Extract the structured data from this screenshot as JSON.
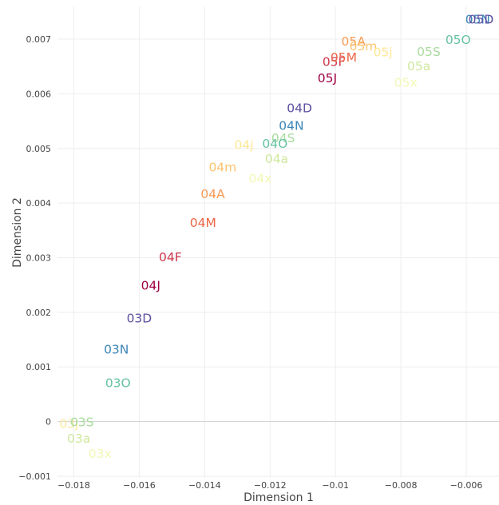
{
  "chart_data": {
    "type": "scatter",
    "mode": "text",
    "xlabel": "Dimension 1",
    "ylabel": "Dimension 2",
    "xlim": [
      -0.0185,
      -0.005
    ],
    "ylim": [
      -0.00103,
      0.0076
    ],
    "x_ticks": [
      {
        "value": -0.018,
        "label": "−0.018"
      },
      {
        "value": -0.016,
        "label": "−0.016"
      },
      {
        "value": -0.014,
        "label": "−0.014"
      },
      {
        "value": -0.012,
        "label": "−0.012"
      },
      {
        "value": -0.01,
        "label": "−0.01"
      },
      {
        "value": -0.008,
        "label": "−0.008"
      },
      {
        "value": -0.006,
        "label": "−0.006"
      }
    ],
    "y_ticks": [
      {
        "value": -0.001,
        "label": "−0.001"
      },
      {
        "value": 0,
        "label": "0"
      },
      {
        "value": 0.001,
        "label": "0.001"
      },
      {
        "value": 0.002,
        "label": "0.002"
      },
      {
        "value": 0.003,
        "label": "0.003"
      },
      {
        "value": 0.004,
        "label": "0.004"
      },
      {
        "value": 0.005,
        "label": "0.005"
      },
      {
        "value": 0.006,
        "label": "0.006"
      },
      {
        "value": 0.007,
        "label": "0.007"
      }
    ],
    "grid": true,
    "points": [
      {
        "label": "03j",
        "x": -0.01815,
        "y": -3e-05,
        "color": "#fbe99a"
      },
      {
        "label": "03S",
        "x": -0.01775,
        "y": 0.0,
        "color": "#a9db9f"
      },
      {
        "label": "03a",
        "x": -0.01785,
        "y": -0.0003,
        "color": "#cfe89d"
      },
      {
        "label": "03x",
        "x": -0.0172,
        "y": -0.00058,
        "color": "#f2f8b4"
      },
      {
        "label": "03O",
        "x": -0.01665,
        "y": 0.00072,
        "color": "#66c2a5"
      },
      {
        "label": "03N",
        "x": -0.0167,
        "y": 0.00133,
        "color": "#3d86b8"
      },
      {
        "label": "03D",
        "x": -0.016,
        "y": 0.0019,
        "color": "#5e4fa2"
      },
      {
        "label": "04J",
        "x": -0.01565,
        "y": 0.0025,
        "color": "#9e0142"
      },
      {
        "label": "04F",
        "x": -0.01505,
        "y": 0.00302,
        "color": "#cf384d"
      },
      {
        "label": "04M",
        "x": -0.01405,
        "y": 0.00365,
        "color": "#ed6445"
      },
      {
        "label": "04A",
        "x": -0.01375,
        "y": 0.00418,
        "color": "#f89b55"
      },
      {
        "label": "04m",
        "x": -0.01345,
        "y": 0.00467,
        "color": "#fcc46f"
      },
      {
        "label": "04j",
        "x": -0.0128,
        "y": 0.00508,
        "color": "#fee795"
      },
      {
        "label": "04x",
        "x": -0.0123,
        "y": 0.00446,
        "color": "#f2f8b4"
      },
      {
        "label": "04a",
        "x": -0.0118,
        "y": 0.00482,
        "color": "#cfe89d"
      },
      {
        "label": "04S",
        "x": -0.0116,
        "y": 0.0052,
        "color": "#a9db9f"
      },
      {
        "label": "04O",
        "x": -0.01185,
        "y": 0.0051,
        "color": "#66c2a5"
      },
      {
        "label": "04N",
        "x": -0.01135,
        "y": 0.00543,
        "color": "#3d86b8"
      },
      {
        "label": "04D",
        "x": -0.0111,
        "y": 0.00575,
        "color": "#5e4fa2"
      },
      {
        "label": "05J",
        "x": -0.01025,
        "y": 0.0063,
        "color": "#9e0142"
      },
      {
        "label": "05F",
        "x": -0.01005,
        "y": 0.0066,
        "color": "#cf384d"
      },
      {
        "label": "05M",
        "x": -0.00975,
        "y": 0.00668,
        "color": "#ed6445"
      },
      {
        "label": "05A",
        "x": -0.00945,
        "y": 0.00697,
        "color": "#f89b55"
      },
      {
        "label": "05m",
        "x": -0.00915,
        "y": 0.00688,
        "color": "#fcc46f"
      },
      {
        "label": "05j",
        "x": -0.00855,
        "y": 0.00677,
        "color": "#fee795"
      },
      {
        "label": "05x",
        "x": -0.00785,
        "y": 0.00622,
        "color": "#f2f8b4"
      },
      {
        "label": "05a",
        "x": -0.00745,
        "y": 0.00652,
        "color": "#cfe89d"
      },
      {
        "label": "05S",
        "x": -0.00715,
        "y": 0.00678,
        "color": "#a9db9f"
      },
      {
        "label": "05O",
        "x": -0.00625,
        "y": 0.007,
        "color": "#66c2a5"
      },
      {
        "label": "05N",
        "x": -0.00565,
        "y": 0.00737,
        "color": "#3d86b8"
      },
      {
        "label": "05D",
        "x": -0.00555,
        "y": 0.00737,
        "color": "#5e4fa2"
      }
    ]
  }
}
